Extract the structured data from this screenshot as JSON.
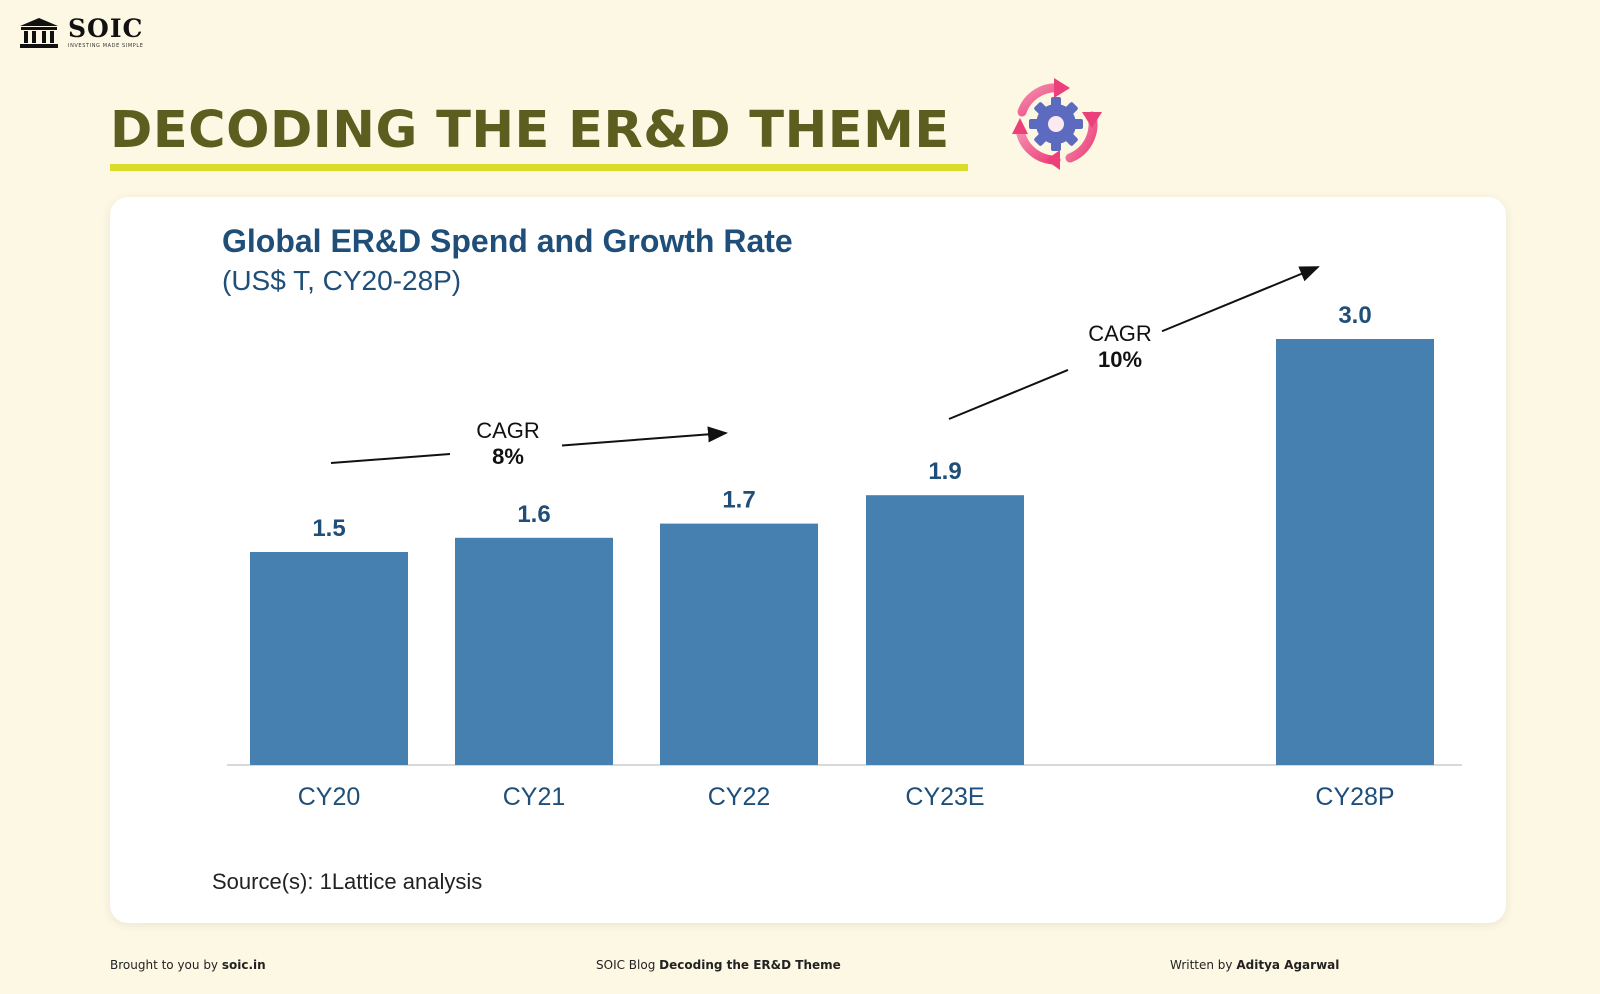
{
  "brand": {
    "name": "SOIC",
    "tagline": "INVESTING MADE SIMPLE"
  },
  "header": {
    "title": "DECODING THE ER&D THEME",
    "title_color": "#5b5e1f",
    "underline_color": "#d9dc2a",
    "theme_icon": "gear-cycle-icon"
  },
  "chart_data": {
    "type": "bar",
    "title": "Global ER&D Spend and Growth Rate",
    "subtitle": "(US$ T, CY20-28P)",
    "categories": [
      "CY20",
      "CY21",
      "CY22",
      "CY23E",
      "CY28P"
    ],
    "values": [
      1.5,
      1.6,
      1.7,
      1.9,
      3.0
    ],
    "value_labels": [
      "1.5",
      "1.6",
      "1.7",
      "1.9",
      "3.0"
    ],
    "bar_color": "#4680b0",
    "label_color": "#1f4e79",
    "ylim": [
      0,
      3.0
    ],
    "grid": false,
    "annotations": [
      {
        "line1": "CAGR",
        "line2": "8%",
        "from": "CY20",
        "to": "CY22"
      },
      {
        "line1": "CAGR",
        "line2": "10%",
        "from": "CY23E",
        "to": "CY28P"
      }
    ],
    "source": "Source(s): 1Lattice analysis"
  },
  "footer": {
    "left_prefix": "Brought to you by",
    "left_bold": "soic.in",
    "mid_prefix": "SOIC Blog",
    "mid_bold": "Decoding the ER&D Theme",
    "right_prefix": "Written by",
    "right_bold": "Aditya Agarwal"
  }
}
